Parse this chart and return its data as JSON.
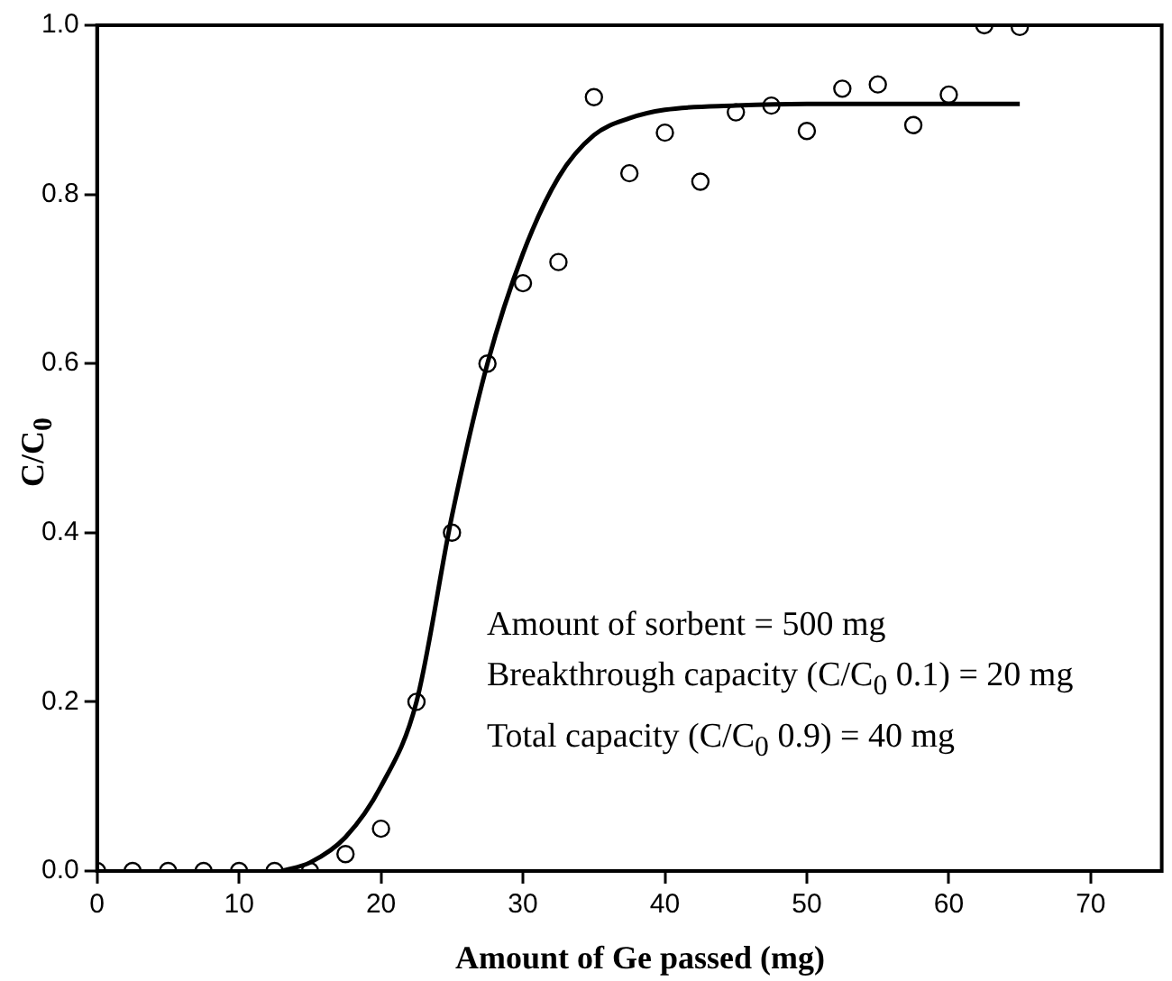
{
  "chart_data": {
    "type": "scatter",
    "xlabel": "Amount of Ge passed (mg)",
    "ylabel": "C/C$_{0}$",
    "xlim": [
      0,
      75
    ],
    "xticks": [
      0,
      10,
      20,
      30,
      40,
      50,
      60,
      70
    ],
    "ylim": [
      0,
      1
    ],
    "yticks": [
      {
        "value": 0,
        "label": "0.0"
      },
      {
        "value": 0.2,
        "label": "0.2"
      },
      {
        "value": 0.4,
        "label": "0.4"
      },
      {
        "value": 0.6,
        "label": "0.6"
      },
      {
        "value": 0.8,
        "label": "0.8"
      },
      {
        "value": 1,
        "label": "1.0"
      }
    ],
    "grid": false,
    "legend": false,
    "series": [
      {
        "type": "scatter",
        "color": "#000000",
        "marker": "circle",
        "x": [
          0,
          2.5,
          5,
          7.5,
          10,
          12.5,
          15,
          17.5,
          20,
          22.5,
          25,
          27.5,
          30,
          32.5,
          35,
          37.5,
          40,
          42.5,
          45,
          47.5,
          50,
          52.5,
          55,
          57.5,
          60,
          62.5,
          65
        ],
        "values": [
          0,
          0,
          0,
          0,
          0,
          0,
          0,
          0.02,
          0.05,
          0.2,
          0.4,
          0.6,
          0.695,
          0.72,
          0.915,
          0.825,
          0.873,
          0.815,
          0.897,
          0.905,
          0.875,
          0.925,
          0.93,
          0.882,
          0.918,
          1.0,
          0.998
        ]
      },
      {
        "type": "line",
        "color": "#000000",
        "marker": "none",
        "line_style": "solid",
        "x": [
          13,
          15,
          17.5,
          20,
          22.5,
          25,
          27.5,
          30,
          32.5,
          35,
          37.5,
          40,
          45,
          50,
          55,
          60,
          65
        ],
        "values": [
          0,
          0.01,
          0.04,
          0.1,
          0.2,
          0.42,
          0.6,
          0.73,
          0.82,
          0.87,
          0.89,
          0.9,
          0.905,
          0.907,
          0.907,
          0.907,
          0.907
        ]
      }
    ],
    "annotations": [
      "Amount of sorbent = 500 mg",
      "Breakthrough capacity (C/C$_{0}$ 0.1) = 20 mg",
      "Total capacity (C/C$_{0}$ 0.9) = 40 mg"
    ]
  }
}
